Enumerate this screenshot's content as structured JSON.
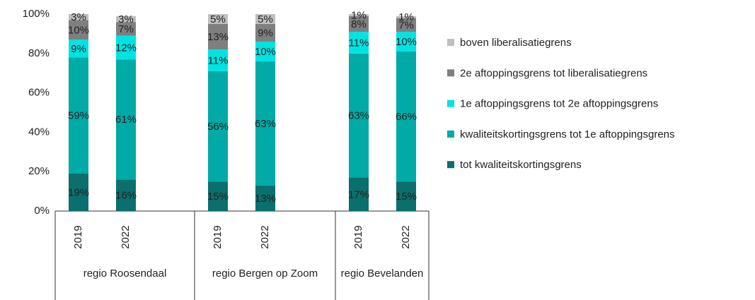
{
  "chart_data": {
    "type": "stacked-bar",
    "groups": [
      {
        "name": "regio Roosendaal",
        "categories": [
          "2019",
          "2022"
        ]
      },
      {
        "name": "regio Bergen op Zoom",
        "categories": [
          "2019",
          "2022"
        ]
      },
      {
        "name": "regio Bevelanden",
        "categories": [
          "2019",
          "2022"
        ]
      }
    ],
    "series": [
      {
        "name": "tot kwaliteitskortingsgrens",
        "color": "#0b6f6d",
        "values": [
          19,
          16,
          15,
          13,
          17,
          15
        ],
        "value_labels": [
          "19%",
          "16%",
          "15%",
          "13%",
          "17%",
          "15%"
        ]
      },
      {
        "name": "kwaliteitskortingsgrens tot 1e aftoppingsgrens",
        "color": "#00aaa6",
        "values": [
          59,
          61,
          56,
          63,
          63,
          66
        ],
        "value_labels": [
          "59%",
          "61%",
          "56%",
          "63%",
          "63%",
          "66%"
        ]
      },
      {
        "name": "1e aftoppingsgrens tot 2e aftoppingsgrens",
        "color": "#00e3e3",
        "values": [
          9,
          12,
          11,
          10,
          11,
          10
        ],
        "value_labels": [
          "9%",
          "12%",
          "11%",
          "10%",
          "11%",
          "10%"
        ]
      },
      {
        "name": "2e aftoppingsgrens tot liberalisatiegrens",
        "color": "#7f7f7f",
        "values": [
          10,
          7,
          13,
          9,
          8,
          7
        ],
        "value_labels": [
          "10%",
          "7%",
          "13%",
          "9%",
          "8%",
          "7%"
        ]
      },
      {
        "name": "boven liberalisatiegrens",
        "color": "#bfbfbf",
        "values": [
          3,
          3,
          5,
          5,
          1,
          1
        ],
        "value_labels": [
          "3%",
          "3%",
          "5%",
          "5%",
          "1%",
          "1%"
        ]
      }
    ],
    "ylim": [
      0,
      100
    ],
    "yticks": [
      {
        "value": 0,
        "label": "0%"
      },
      {
        "value": 20,
        "label": "20%"
      },
      {
        "value": 40,
        "label": "40%"
      },
      {
        "value": 60,
        "label": "60%"
      },
      {
        "value": 80,
        "label": "80%"
      },
      {
        "value": 100,
        "label": "100%"
      }
    ]
  }
}
